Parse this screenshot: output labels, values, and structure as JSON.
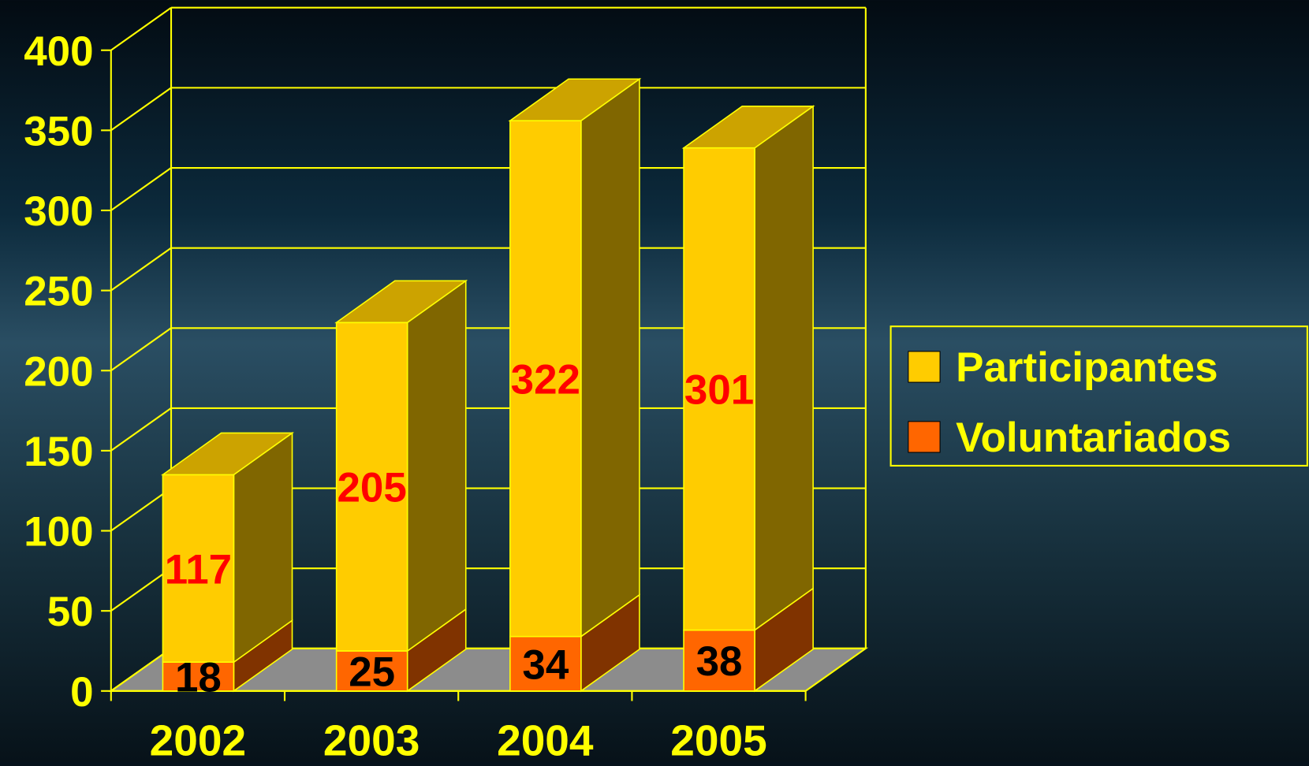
{
  "chart_data": {
    "type": "bar3d_stacked",
    "categories": [
      "2002",
      "2003",
      "2004",
      "2005"
    ],
    "series": [
      {
        "name": "Voluntariados",
        "color": "#ff6600",
        "values": [
          18,
          25,
          34,
          38
        ]
      },
      {
        "name": "Participantes",
        "color": "#ffcc00",
        "values": [
          117,
          205,
          322,
          301
        ]
      }
    ],
    "ylim": [
      0,
      400
    ],
    "yticks": [
      0,
      50,
      100,
      150,
      200,
      250,
      300,
      350,
      400
    ],
    "grid": true,
    "legend": "right"
  }
}
